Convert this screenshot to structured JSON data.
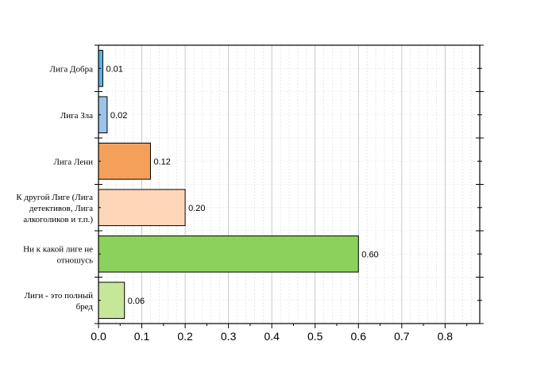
{
  "chart_data": {
    "type": "bar",
    "orientation": "horizontal",
    "title": "",
    "xlabel": "",
    "ylabel": "",
    "xlim": [
      0,
      0.88
    ],
    "xticks": [
      "0.0",
      "0.1",
      "0.2",
      "0.3",
      "0.4",
      "0.5",
      "0.6",
      "0.7",
      "0.8"
    ],
    "grid": true,
    "categories": [
      [
        "Лига Добра"
      ],
      [
        "Лига Зла"
      ],
      [
        "Лига Лени"
      ],
      [
        "К другой Лиге (Лига",
        "детективов, Лига",
        "алкоголиков и т.п.)"
      ],
      [
        "Ни к какой лиге не",
        "отношусь"
      ],
      [
        "Лиги - это полный",
        "бред"
      ]
    ],
    "values": [
      0.01,
      0.02,
      0.12,
      0.2,
      0.6,
      0.06
    ],
    "value_labels": [
      "0.01",
      "0.02",
      "0.12",
      "0.20",
      "0.60",
      "0.06"
    ],
    "colors": [
      "#5BB4E6",
      "#9CC3EA",
      "#F5A05A",
      "#FDD6B8",
      "#8BD15C",
      "#C6E79A"
    ]
  }
}
